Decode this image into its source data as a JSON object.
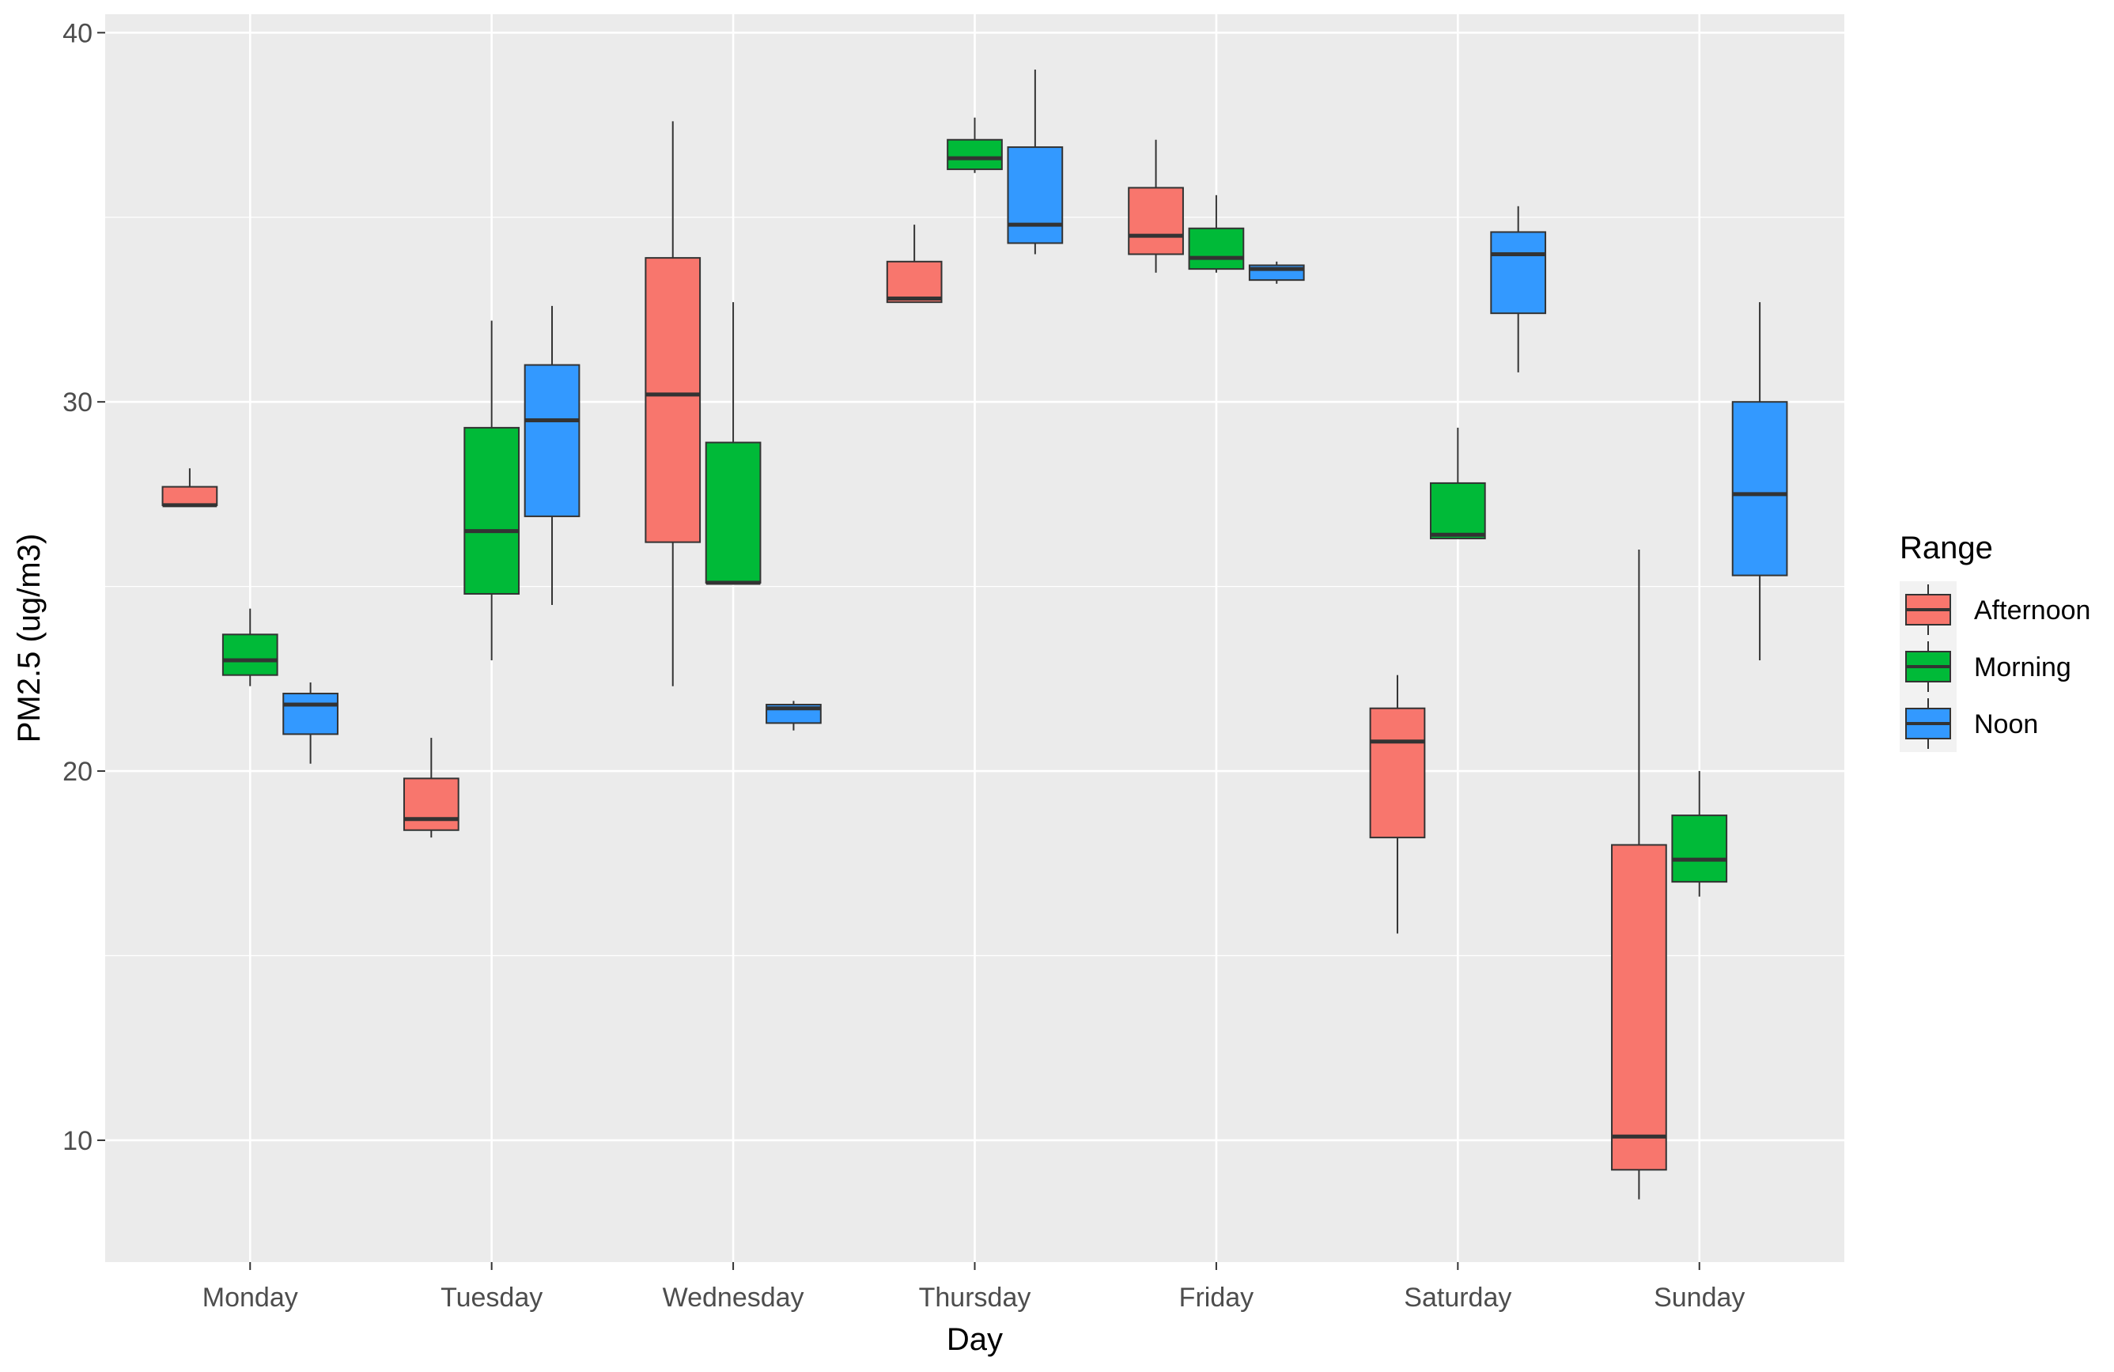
{
  "chart_data": {
    "type": "boxplot",
    "xlabel": "Day",
    "ylabel": "PM2.5 (ug/m3)",
    "ylim": [
      6.7,
      40.5
    ],
    "yticks": [
      10,
      20,
      30,
      40
    ],
    "ytick_labels": [
      "10",
      "20",
      "30",
      "40"
    ],
    "categories": [
      "Monday",
      "Tuesday",
      "Wednesday",
      "Thursday",
      "Friday",
      "Saturday",
      "Sunday"
    ],
    "legend": {
      "title": "Range",
      "position": "right"
    },
    "series": [
      {
        "name": "Afternoon",
        "color": "#F8766D",
        "boxes": [
          {
            "min": 27.2,
            "q1": 27.2,
            "median": 27.2,
            "q3": 27.7,
            "max": 28.2
          },
          {
            "min": 18.2,
            "q1": 18.4,
            "median": 18.7,
            "q3": 19.8,
            "max": 20.9
          },
          {
            "min": 22.3,
            "q1": 26.2,
            "median": 30.2,
            "q3": 33.9,
            "max": 37.6
          },
          {
            "min": 32.7,
            "q1": 32.7,
            "median": 32.8,
            "q3": 33.8,
            "max": 34.8
          },
          {
            "min": 33.5,
            "q1": 34.0,
            "median": 34.5,
            "q3": 35.8,
            "max": 37.1
          },
          {
            "min": 15.6,
            "q1": 18.2,
            "median": 20.8,
            "q3": 21.7,
            "max": 22.6
          },
          {
            "min": 8.4,
            "q1": 9.2,
            "median": 10.1,
            "q3": 18.0,
            "max": 26.0
          }
        ]
      },
      {
        "name": "Morning",
        "color": "#00BA38",
        "boxes": [
          {
            "min": 22.3,
            "q1": 22.6,
            "median": 23.0,
            "q3": 23.7,
            "max": 24.4
          },
          {
            "min": 23.0,
            "q1": 24.8,
            "median": 26.5,
            "q3": 29.3,
            "max": 32.2
          },
          {
            "min": 25.1,
            "q1": 25.1,
            "median": 25.1,
            "q3": 28.9,
            "max": 32.7
          },
          {
            "min": 36.2,
            "q1": 36.3,
            "median": 36.6,
            "q3": 37.1,
            "max": 37.7
          },
          {
            "min": 33.5,
            "q1": 33.6,
            "median": 33.9,
            "q3": 34.7,
            "max": 35.6
          },
          {
            "min": 26.3,
            "q1": 26.3,
            "median": 26.4,
            "q3": 27.8,
            "max": 29.3
          },
          {
            "min": 16.6,
            "q1": 17.0,
            "median": 17.6,
            "q3": 18.8,
            "max": 20.0
          }
        ]
      },
      {
        "name": "Noon",
        "color": "#3399FF",
        "boxes": [
          {
            "min": 20.2,
            "q1": 21.0,
            "median": 21.8,
            "q3": 22.1,
            "max": 22.4
          },
          {
            "min": 24.5,
            "q1": 26.9,
            "median": 29.5,
            "q3": 31.0,
            "max": 32.6
          },
          {
            "min": 21.1,
            "q1": 21.3,
            "median": 21.7,
            "q3": 21.8,
            "max": 21.9
          },
          {
            "min": 34.0,
            "q1": 34.3,
            "median": 34.8,
            "q3": 36.9,
            "max": 39.0
          },
          {
            "min": 33.2,
            "q1": 33.3,
            "median": 33.6,
            "q3": 33.7,
            "max": 33.8
          },
          {
            "min": 30.8,
            "q1": 32.4,
            "median": 34.0,
            "q3": 34.6,
            "max": 35.3
          },
          {
            "min": 23.0,
            "q1": 25.3,
            "median": 27.5,
            "q3": 30.0,
            "max": 32.7
          }
        ]
      }
    ]
  }
}
